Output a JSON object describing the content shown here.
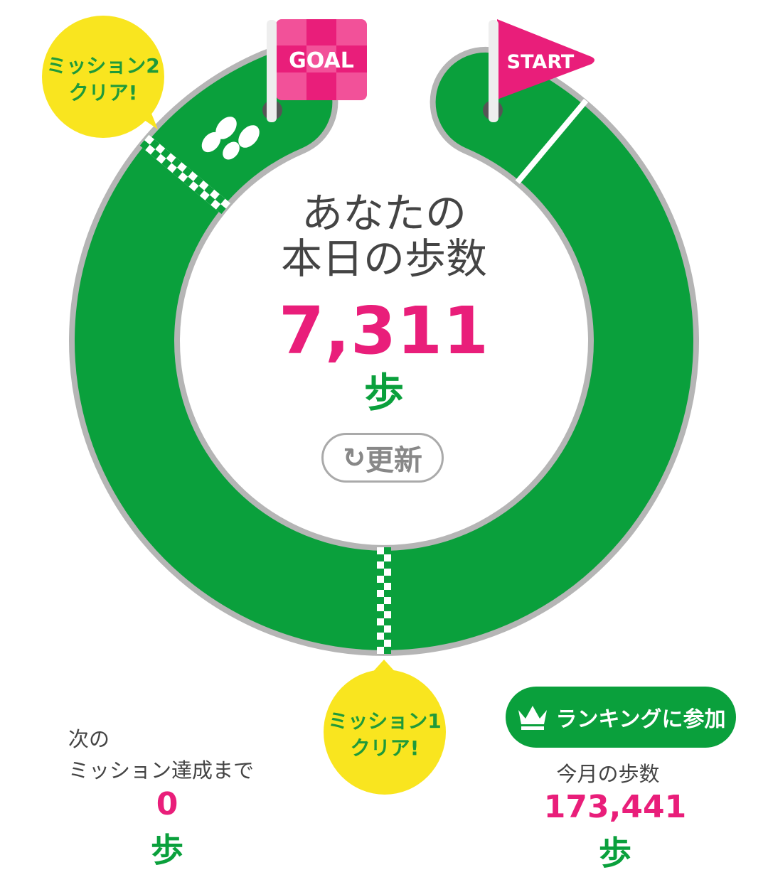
{
  "flags": {
    "goal": "GOAL",
    "start": "START"
  },
  "center": {
    "title_line1": "あなたの",
    "title_line2": "本日の歩数",
    "steps": "7,311",
    "unit": "歩",
    "refresh_label": "更新",
    "refresh_icon": "refresh-icon"
  },
  "missions": [
    {
      "label_line1": "ミッション2",
      "label_line2": "クリア!"
    },
    {
      "label_line1": "ミッション1",
      "label_line2": "クリア!"
    }
  ],
  "next_mission": {
    "label_line1": "次の",
    "label_line2": "ミッション達成まで",
    "steps": "0",
    "unit": "歩"
  },
  "ranking": {
    "button_label": "ランキングに参加",
    "icon": "crown-icon"
  },
  "monthly": {
    "label": "今月の歩数",
    "steps": "173,441",
    "unit": "歩"
  },
  "colors": {
    "green": "#0aa03c",
    "pink": "#e91e7a",
    "yellow": "#f9e51f",
    "gray": "#b5b5b5"
  }
}
